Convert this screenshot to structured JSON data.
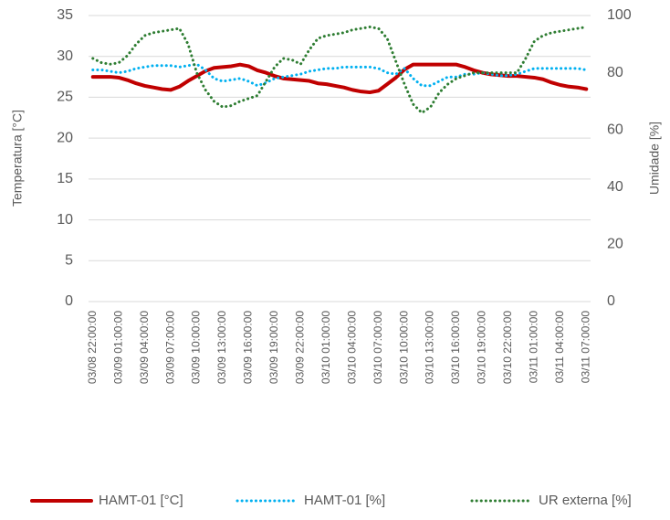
{
  "chart_data": {
    "type": "line",
    "y_label": "Temperatura [°C]",
    "y2_label": "Umidade [%]",
    "categories": [
      "03/08 22:00:00",
      null,
      null,
      "03/09 01:00:00",
      null,
      null,
      "03/09 04:00:00",
      null,
      null,
      "03/09 07:00:00",
      null,
      null,
      "03/09 10:00:00",
      null,
      null,
      "03/09 13:00:00",
      null,
      null,
      "03/09 16:00:00",
      null,
      null,
      "03/09 19:00:00",
      null,
      null,
      "03/09 22:00:00",
      null,
      null,
      "03/10 01:00:00",
      null,
      null,
      "03/10 04:00:00",
      null,
      null,
      "03/10 07:00:00",
      null,
      null,
      "03/10 10:00:00",
      null,
      null,
      "03/10 13:00:00",
      null,
      null,
      "03/10 16:00:00",
      null,
      null,
      "03/10 19:00:00",
      null,
      null,
      "03/10 22:00:00",
      null,
      null,
      "03/11 01:00:00",
      null,
      null,
      "03/11 04:00:00",
      null,
      null,
      "03/11 07:00:00"
    ],
    "series": [
      {
        "name": "HAMT-01 [°C]",
        "color": "#c00000",
        "style": "solid",
        "axis": "y",
        "values": [
          27.5,
          27.5,
          27.5,
          27.4,
          27.1,
          26.7,
          26.4,
          26.2,
          26.0,
          25.9,
          26.3,
          27.0,
          27.6,
          28.2,
          28.6,
          28.7,
          28.8,
          29.0,
          28.8,
          28.3,
          28.0,
          27.6,
          27.3,
          27.2,
          27.1,
          27.0,
          26.7,
          26.6,
          26.4,
          26.2,
          25.9,
          25.7,
          25.6,
          25.8,
          26.6,
          27.4,
          28.4,
          29.0,
          29.0,
          29.0,
          29.0,
          29.0,
          29.0,
          28.7,
          28.3,
          28.0,
          27.8,
          27.7,
          27.6,
          27.6,
          27.5,
          27.4,
          27.2,
          26.8,
          26.5,
          26.3,
          26.2,
          26.0
        ]
      },
      {
        "name": "HAMT-01 [%]",
        "color": "#00b0f0",
        "style": "dotted",
        "axis": "y2",
        "values": [
          81,
          81,
          80.5,
          80,
          80.5,
          81.5,
          82,
          82.5,
          82.5,
          82.5,
          82,
          82.5,
          83,
          81,
          78,
          77,
          77.5,
          78,
          77,
          75.5,
          76.5,
          78,
          78.5,
          79,
          79.5,
          80.5,
          81,
          81.5,
          81.5,
          82,
          82,
          82,
          82,
          81.5,
          80,
          79.5,
          81.5,
          78,
          75.5,
          75.5,
          77,
          78.5,
          78.5,
          79.5,
          79.5,
          80,
          79.5,
          79,
          79,
          79.5,
          80.5,
          81.5,
          81.5,
          81.5,
          81.5,
          81.5,
          81.5,
          81
        ]
      },
      {
        "name": "UR externa [%]",
        "color": "#2e7d32",
        "style": "dotted",
        "axis": "y2",
        "values": [
          85,
          83.5,
          83,
          83.5,
          86,
          90,
          93,
          94,
          94.5,
          95,
          95.5,
          90,
          80,
          74,
          70,
          68,
          68.5,
          70,
          71,
          72,
          77,
          82,
          85,
          84.5,
          83,
          88,
          92,
          93,
          93.5,
          94,
          95,
          95.5,
          96,
          95.5,
          92,
          84,
          76,
          69,
          66,
          68,
          73,
          76,
          78,
          79,
          80,
          80,
          80,
          80,
          80,
          80,
          85,
          91,
          93,
          94,
          94.5,
          95,
          95.5,
          96
        ]
      }
    ],
    "ylim": [
      0,
      35
    ],
    "yticks": [
      0,
      5,
      10,
      15,
      20,
      25,
      30,
      35
    ],
    "y2lim": [
      0,
      100
    ],
    "y2ticks": [
      0,
      20,
      40,
      60,
      80,
      100
    ],
    "grid": true,
    "legend": "bottom"
  }
}
